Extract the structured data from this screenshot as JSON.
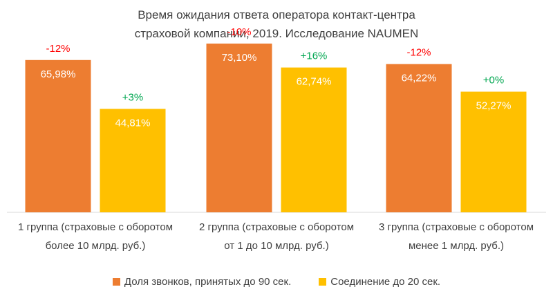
{
  "chart_data": {
    "type": "bar",
    "title": [
      "Время ожидания ответа оператора контакт-центра",
      "страховой компании, 2019. Исследование NAUMEN"
    ],
    "categories": [
      [
        "1 группа (страховые с оборотом",
        "более 10 млрд. руб.)"
      ],
      [
        "2 группа (страховые с оборотом",
        "от 1 до 10 млрд. руб.)"
      ],
      [
        "3 группа (страховые с оборотом",
        "менее 1 млрд. руб.)"
      ]
    ],
    "series": [
      {
        "name": "Доля звонков, принятых до 90 сек.",
        "color": "#ED7D31",
        "values": [
          65.98,
          73.1,
          64.22
        ],
        "value_labels": [
          "65,98%",
          "73,10%",
          "64,22%"
        ],
        "change_labels": [
          "-12%",
          "-10%",
          "-12%"
        ]
      },
      {
        "name": "Соединение до 20 сек.",
        "color": "#FFC000",
        "values": [
          44.81,
          62.74,
          52.27
        ],
        "value_labels": [
          "44,81%",
          "62,74%",
          "52,27%"
        ],
        "change_labels": [
          "+3%",
          "+16%",
          "+0%"
        ]
      }
    ],
    "ylim": [
      0,
      80
    ],
    "xlabel": "",
    "ylabel": "",
    "legend_position": "bottom"
  },
  "colors": {
    "negative": "#FF0000",
    "positive": "#00A650",
    "axis": "#D9D9D9",
    "text": "#404040"
  }
}
